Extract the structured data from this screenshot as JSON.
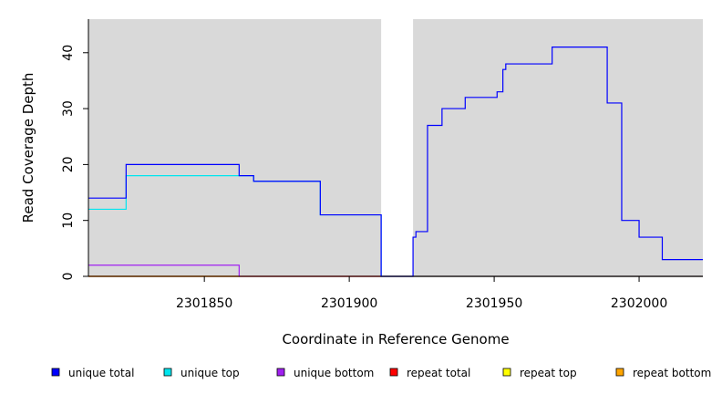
{
  "chart_data": {
    "type": "line",
    "step": true,
    "title": "",
    "xlabel": "Coordinate in Reference Genome",
    "ylabel": "Read Coverage Depth",
    "xlim": [
      2301810,
      2302022
    ],
    "ylim": [
      0,
      46
    ],
    "x_ticks": [
      2301850,
      2301900,
      2301950,
      2302000
    ],
    "y_ticks": [
      0,
      10,
      20,
      30,
      40
    ],
    "background": "#d9d9d9",
    "grid": false,
    "gap_region": [
      2301911,
      2301922
    ],
    "legend_position": "bottom",
    "series": [
      {
        "name": "unique total",
        "color": "#0000ff",
        "x": [
          2301810,
          2301823,
          2301862,
          2301867,
          2301890,
          2301911,
          2301922,
          2301923,
          2301927,
          2301932,
          2301940,
          2301951,
          2301953,
          2301954,
          2301970,
          2301989,
          2301994,
          2302000,
          2302008,
          2302022
        ],
        "y": [
          14,
          20,
          18,
          17,
          11,
          0,
          7,
          8,
          27,
          30,
          32,
          33,
          37,
          38,
          41,
          31,
          10,
          7,
          3,
          3
        ]
      },
      {
        "name": "unique top",
        "color": "#00e5ee",
        "x": [
          2301810,
          2301823,
          2301862,
          2301867,
          2301890,
          2301911,
          2302022
        ],
        "y": [
          12,
          18,
          18,
          17,
          11,
          0,
          0
        ]
      },
      {
        "name": "unique bottom",
        "color": "#a020f0",
        "x": [
          2301810,
          2301862,
          2302022
        ],
        "y": [
          2,
          0,
          0
        ]
      },
      {
        "name": "repeat total",
        "color": "#ff0000",
        "x": [
          2301810,
          2302022
        ],
        "y": [
          0,
          0
        ]
      },
      {
        "name": "repeat top",
        "color": "#ffff00",
        "x": [
          2301810,
          2302022
        ],
        "y": [
          0,
          0
        ]
      },
      {
        "name": "repeat bottom",
        "color": "#ffa500",
        "x": [
          2301810,
          2302022
        ],
        "y": [
          0,
          0
        ]
      }
    ]
  }
}
